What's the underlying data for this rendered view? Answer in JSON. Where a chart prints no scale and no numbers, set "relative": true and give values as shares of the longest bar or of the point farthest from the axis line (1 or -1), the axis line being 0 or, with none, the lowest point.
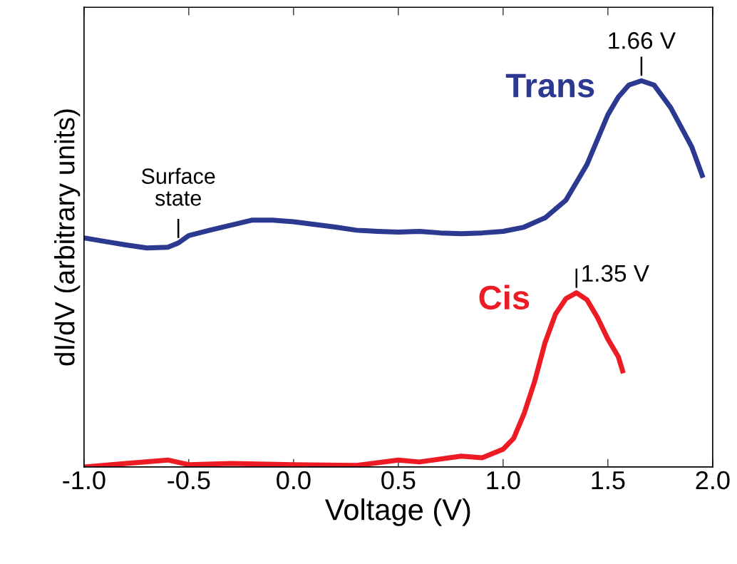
{
  "chart_data": {
    "type": "line",
    "xlabel": "Voltage (V)",
    "ylabel": "dI/dV (arbitrary units)",
    "relative": true,
    "xlim": [
      -1.0,
      2.0
    ],
    "xticks": [
      {
        "value": -1.0,
        "label": "-1.0"
      },
      {
        "value": -0.5,
        "label": "-0.5"
      },
      {
        "value": 0.0,
        "label": "0.0"
      },
      {
        "value": 0.5,
        "label": "0.5"
      },
      {
        "value": 1.0,
        "label": "1.0"
      },
      {
        "value": 1.5,
        "label": "1.5"
      },
      {
        "value": 2.0,
        "label": "2.0"
      }
    ],
    "legend": false,
    "grid": false,
    "marker": "none",
    "line_style": "solid",
    "series": [
      {
        "name": "Trans",
        "color": "#2b3990",
        "x": [
          -1.0,
          -0.9,
          -0.8,
          -0.7,
          -0.6,
          -0.55,
          -0.5,
          -0.4,
          -0.3,
          -0.2,
          -0.1,
          0.0,
          0.1,
          0.2,
          0.3,
          0.4,
          0.5,
          0.6,
          0.7,
          0.8,
          0.9,
          1.0,
          1.1,
          1.2,
          1.3,
          1.4,
          1.5,
          1.55,
          1.6,
          1.66,
          1.72,
          1.8,
          1.9,
          1.95
        ],
        "values": [
          0.593,
          0.584,
          0.575,
          0.567,
          0.569,
          0.58,
          0.599,
          0.613,
          0.626,
          0.639,
          0.639,
          0.635,
          0.628,
          0.621,
          0.613,
          0.61,
          0.608,
          0.61,
          0.606,
          0.604,
          0.606,
          0.61,
          0.621,
          0.645,
          0.691,
          0.783,
          0.912,
          0.958,
          0.989,
          1.0,
          0.989,
          0.93,
          0.829,
          0.755
        ]
      },
      {
        "name": "Cis",
        "color": "#ed1c24",
        "x": [
          -1.0,
          -0.8,
          -0.6,
          -0.5,
          -0.3,
          0.0,
          0.3,
          0.5,
          0.6,
          0.8,
          0.9,
          1.0,
          1.05,
          1.1,
          1.15,
          1.2,
          1.25,
          1.3,
          1.35,
          1.4,
          1.45,
          1.5,
          1.55,
          1.57
        ],
        "values": [
          0.0,
          0.009,
          0.018,
          0.006,
          0.009,
          0.006,
          0.004,
          0.018,
          0.013,
          0.028,
          0.024,
          0.046,
          0.074,
          0.138,
          0.221,
          0.322,
          0.396,
          0.436,
          0.451,
          0.433,
          0.387,
          0.331,
          0.285,
          0.249
        ]
      }
    ],
    "annotations": [
      {
        "text": "Surface state",
        "x": -0.55,
        "y": 0.58
      },
      {
        "text": "1.66 V",
        "x": 1.66,
        "y": 1.0
      },
      {
        "text": "1.35 V",
        "x": 1.35,
        "y": 0.451
      }
    ]
  }
}
